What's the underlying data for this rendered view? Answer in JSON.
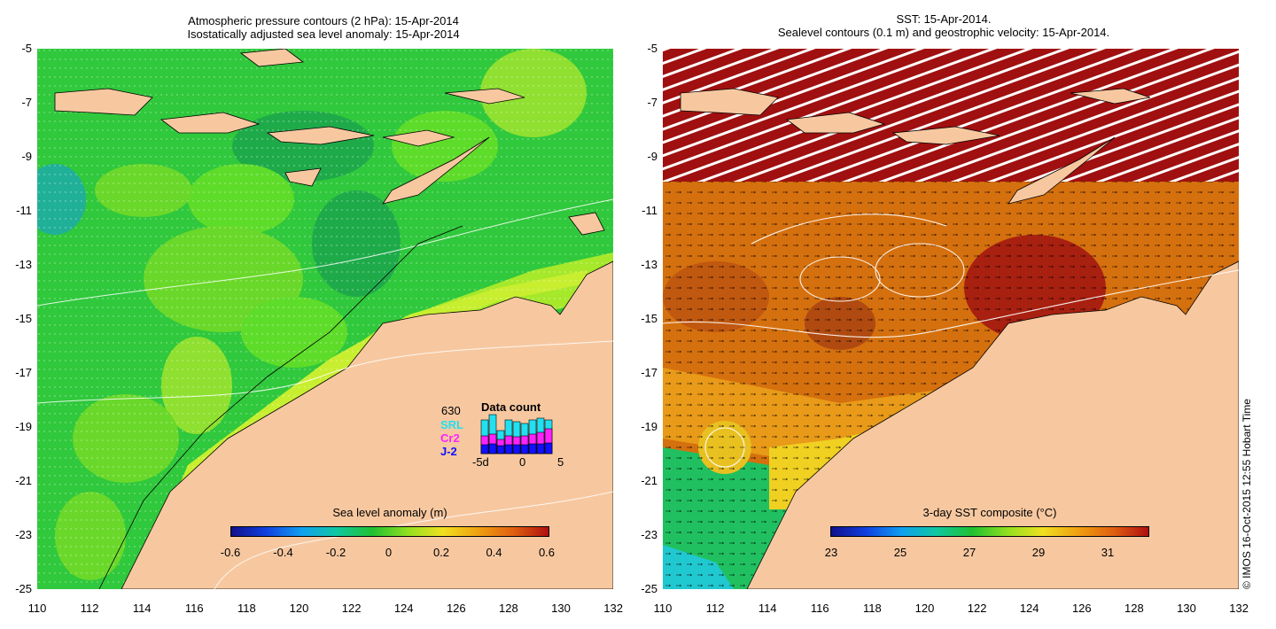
{
  "left_panel": {
    "title_line1": "Atmospheric pressure contours (2 hPa): 15-Apr-2014",
    "title_line2": "Isostatically adjusted sea level anomaly: 15-Apr-2014",
    "colorbar_label": "Sea level anomaly (m)",
    "colorbar_ticks": [
      "-0.6",
      "-0.4",
      "-0.2",
      "0",
      "0.2",
      "0.4",
      "0.6"
    ],
    "data_count": {
      "title": "Data count",
      "max_count": "630",
      "legend": [
        "SRL",
        "Cr2",
        "J-2"
      ],
      "legend_colors": [
        "#22e0f0",
        "#ff22ff",
        "#1010ff"
      ],
      "x_ticks": [
        "-5d",
        "0",
        "5"
      ]
    }
  },
  "right_panel": {
    "title_line1": "SST: 15-Apr-2014.",
    "title_line2": "Sealevel contours (0.1 m) and geostrophic velocity: 15-Apr-2014.",
    "colorbar_label": "3-day SST composite (°C)",
    "colorbar_ticks": [
      "23",
      "25",
      "27",
      "29",
      "31"
    ]
  },
  "y_ticks": [
    "-5",
    "-7",
    "-9",
    "-11",
    "-13",
    "-15",
    "-17",
    "-19",
    "-21",
    "-23",
    "-25"
  ],
  "x_ticks": [
    "110",
    "112",
    "114",
    "116",
    "118",
    "120",
    "122",
    "124",
    "126",
    "128",
    "130",
    "132"
  ],
  "credit": "© IMOS 16-Oct-2015 12:55 Hobart Time",
  "colors": {
    "land": "#f7c8a0",
    "ocean_green": "#22c83a",
    "sst_warm": "#d56a0a",
    "sst_hot": "#a01010"
  }
}
